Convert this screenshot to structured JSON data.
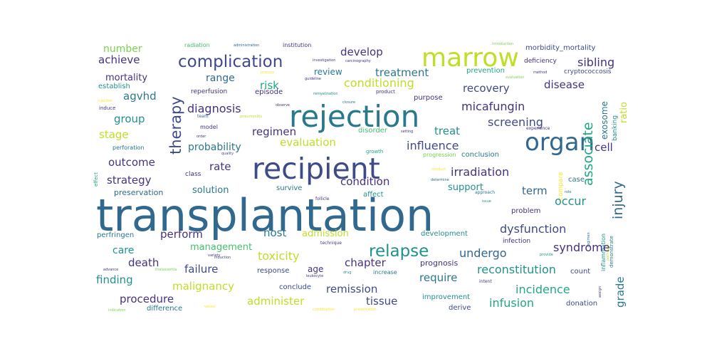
{
  "word_cloud": {
    "colors": {
      "background": "#ffffff",
      "dark_purple": "#46327e",
      "indigo": "#3e4a89",
      "blue": "#31688e",
      "teal": "#2a788e",
      "cyan": "#21918c",
      "green_teal": "#22a884",
      "green": "#44bf70",
      "light_green": "#7ad151",
      "yellow_green": "#bddf26",
      "yellow": "#fde725"
    },
    "words": [
      {
        "text": "transplantation",
        "color": "#31688e"
      },
      {
        "text": "recipient",
        "color": "#3e4a89"
      },
      {
        "text": "rejection",
        "color": "#2a788e"
      },
      {
        "text": "marrow",
        "color": "#bddf26"
      },
      {
        "text": "organ",
        "color": "#31688e"
      },
      {
        "text": "complication",
        "color": "#3e4a89"
      },
      {
        "text": "relapse",
        "color": "#21918c"
      },
      {
        "text": "therapy",
        "color": "#3e4a89"
      },
      {
        "text": "associate",
        "color": "#22a884"
      },
      {
        "text": "injury",
        "color": "#31688e"
      },
      {
        "text": "exosome",
        "color": "#2a788e"
      },
      {
        "text": "ratio",
        "color": "#bddf26"
      },
      {
        "text": "grade",
        "color": "#2a788e"
      },
      {
        "text": "diagnosis",
        "color": "#46327e"
      },
      {
        "text": "micafungin",
        "color": "#46327e"
      },
      {
        "text": "screening",
        "color": "#3e4a89"
      },
      {
        "text": "irradiation",
        "color": "#46327e"
      },
      {
        "text": "influence",
        "color": "#3e4a89"
      },
      {
        "text": "conditioning",
        "color": "#bddf26"
      },
      {
        "text": "treatment",
        "color": "#2a788e"
      },
      {
        "text": "develop",
        "color": "#46327e"
      },
      {
        "text": "recovery",
        "color": "#3e4a89"
      },
      {
        "text": "disease",
        "color": "#46327e"
      },
      {
        "text": "sibling",
        "color": "#46327e"
      },
      {
        "text": "achieve",
        "color": "#46327e"
      },
      {
        "text": "number",
        "color": "#7ad151"
      },
      {
        "text": "range",
        "color": "#31688e"
      },
      {
        "text": "risk",
        "color": "#22a884"
      },
      {
        "text": "review",
        "color": "#2a788e"
      },
      {
        "text": "mortality",
        "color": "#46327e"
      },
      {
        "text": "agvhd",
        "color": "#2a788e"
      },
      {
        "text": "group",
        "color": "#21918c"
      },
      {
        "text": "stage",
        "color": "#bddf26"
      },
      {
        "text": "regimen",
        "color": "#46327e"
      },
      {
        "text": "treat",
        "color": "#21918c"
      },
      {
        "text": "cell",
        "color": "#46327e"
      },
      {
        "text": "probability",
        "color": "#2a788e"
      },
      {
        "text": "evaluation",
        "color": "#bddf26"
      },
      {
        "text": "outcome",
        "color": "#46327e"
      },
      {
        "text": "rate",
        "color": "#46327e"
      },
      {
        "text": "strategy",
        "color": "#46327e"
      },
      {
        "text": "condition",
        "color": "#46327e"
      },
      {
        "text": "solution",
        "color": "#2a788e"
      },
      {
        "text": "support",
        "color": "#21918c"
      },
      {
        "text": "term",
        "color": "#31688e"
      },
      {
        "text": "occur",
        "color": "#21918c"
      },
      {
        "text": "perform",
        "color": "#46327e"
      },
      {
        "text": "host",
        "color": "#2a788e"
      },
      {
        "text": "admission",
        "color": "#bddf26"
      },
      {
        "text": "dysfunction",
        "color": "#3e4a89"
      },
      {
        "text": "care",
        "color": "#21918c"
      },
      {
        "text": "management",
        "color": "#44bf70"
      },
      {
        "text": "chapter",
        "color": "#46327e"
      },
      {
        "text": "undergo",
        "color": "#31688e"
      },
      {
        "text": "syndrome",
        "color": "#46327e"
      },
      {
        "text": "toxicity",
        "color": "#bddf26"
      },
      {
        "text": "death",
        "color": "#46327e"
      },
      {
        "text": "failure",
        "color": "#3e4a89"
      },
      {
        "text": "age",
        "color": "#46327e"
      },
      {
        "text": "reconstitution",
        "color": "#21918c"
      },
      {
        "text": "finding",
        "color": "#21918c"
      },
      {
        "text": "malignancy",
        "color": "#bddf26"
      },
      {
        "text": "remission",
        "color": "#3e4a89"
      },
      {
        "text": "require",
        "color": "#2a788e"
      },
      {
        "text": "incidence",
        "color": "#22a884"
      },
      {
        "text": "procedure",
        "color": "#46327e"
      },
      {
        "text": "administer",
        "color": "#bddf26"
      },
      {
        "text": "tissue",
        "color": "#3e4a89"
      },
      {
        "text": "infusion",
        "color": "#22a884"
      },
      {
        "text": "prognosis",
        "color": "#46327e"
      },
      {
        "text": "response",
        "color": "#3e4a89"
      },
      {
        "text": "conclude",
        "color": "#3e4a89"
      },
      {
        "text": "difference",
        "color": "#2a788e"
      },
      {
        "text": "improvement",
        "color": "#21918c"
      },
      {
        "text": "derive",
        "color": "#3e4a89"
      },
      {
        "text": "donation",
        "color": "#3e4a89"
      },
      {
        "text": "count",
        "color": "#3e4a89"
      },
      {
        "text": "problem",
        "color": "#46327e"
      },
      {
        "text": "infection",
        "color": "#46327e"
      },
      {
        "text": "development",
        "color": "#21918c"
      },
      {
        "text": "case",
        "color": "#2a788e"
      },
      {
        "text": "conclusion",
        "color": "#2a788e"
      },
      {
        "text": "progression",
        "color": "#7ad151"
      },
      {
        "text": "inflammation",
        "color": "#21918c"
      },
      {
        "text": "demonstrate",
        "color": "#2a788e"
      },
      {
        "text": "compare",
        "color": "#fde725"
      },
      {
        "text": "banking",
        "color": "#21918c"
      },
      {
        "text": "morbidity_mortality",
        "color": "#3e4a89"
      },
      {
        "text": "prevention",
        "color": "#22a884"
      },
      {
        "text": "deficiency",
        "color": "#46327e"
      },
      {
        "text": "cryptococcosis",
        "color": "#3e4a89"
      },
      {
        "text": "establish",
        "color": "#21918c"
      },
      {
        "text": "reperfusion",
        "color": "#46327e"
      },
      {
        "text": "episode",
        "color": "#46327e"
      },
      {
        "text": "preservation",
        "color": "#31688e"
      },
      {
        "text": "survive",
        "color": "#2a788e"
      },
      {
        "text": "affect",
        "color": "#21918c"
      },
      {
        "text": "class",
        "color": "#46327e"
      },
      {
        "text": "perfringen",
        "color": "#2a788e"
      },
      {
        "text": "increase",
        "color": "#2a788e"
      },
      {
        "text": "purpose",
        "color": "#46327e"
      },
      {
        "text": "disorder",
        "color": "#44bf70"
      },
      {
        "text": "model",
        "color": "#46327e"
      },
      {
        "text": "perforation",
        "color": "#2a788e"
      },
      {
        "text": "effect",
        "color": "#22a884"
      },
      {
        "text": "radiation",
        "color": "#44bf70"
      },
      {
        "text": "institution",
        "color": "#46327e"
      },
      {
        "text": "administration",
        "color": "#31688e"
      },
      {
        "text": "induce",
        "color": "#46327e"
      },
      {
        "text": "product",
        "color": "#46327e"
      },
      {
        "text": "growth",
        "color": "#22a884"
      },
      {
        "text": "quality",
        "color": "#3e4a89"
      },
      {
        "text": "team",
        "color": "#31688e"
      },
      {
        "text": "technique",
        "color": "#46327e"
      },
      {
        "text": "intent",
        "color": "#46327e"
      },
      {
        "text": "approach",
        "color": "#2a788e"
      },
      {
        "text": "experience",
        "color": "#46327e"
      },
      {
        "text": "setting",
        "color": "#46327e"
      },
      {
        "text": "role",
        "color": "#2a788e"
      },
      {
        "text": "issue",
        "color": "#21918c"
      },
      {
        "text": "assign",
        "color": "#46327e"
      },
      {
        "text": "closure",
        "color": "#2a788e"
      },
      {
        "text": "guideline",
        "color": "#46327e"
      },
      {
        "text": "investigation",
        "color": "#46327e"
      },
      {
        "text": "introduction",
        "color": "#7ad151"
      },
      {
        "text": "evaluation",
        "color": "#7ad151"
      },
      {
        "text": "follicle",
        "color": "#46327e"
      },
      {
        "text": "leukocyte",
        "color": "#46327e"
      },
      {
        "text": "drug",
        "color": "#21918c"
      },
      {
        "text": "advance",
        "color": "#46327e"
      },
      {
        "text": "thalassemia",
        "color": "#7ad151"
      },
      {
        "text": "variety",
        "color": "#46327e"
      },
      {
        "text": "induction",
        "color": "#3e4a89"
      },
      {
        "text": "presentation",
        "color": "#fde725"
      },
      {
        "text": "combination",
        "color": "#fde725"
      },
      {
        "text": "indication",
        "color": "#7ad151"
      },
      {
        "text": "pneumonitis",
        "color": "#bddf26"
      },
      {
        "text": "observe",
        "color": "#46327e"
      },
      {
        "text": "order",
        "color": "#46327e"
      },
      {
        "text": "method",
        "color": "#46327e"
      },
      {
        "text": "pathogen",
        "color": "#bddf26"
      },
      {
        "text": "regimen",
        "color": "#31688e"
      },
      {
        "text": "provide",
        "color": "#21918c"
      },
      {
        "text": "conduct",
        "color": "#fde725"
      },
      {
        "text": "determine",
        "color": "#31688e"
      },
      {
        "text": "carcinography",
        "color": "#46327e"
      },
      {
        "text": "process",
        "color": "#fde725"
      },
      {
        "text": "remyelination",
        "color": "#21918c"
      },
      {
        "text": "injection",
        "color": "#fde725"
      },
      {
        "text": "vessel",
        "color": "#fde725"
      }
    ]
  }
}
